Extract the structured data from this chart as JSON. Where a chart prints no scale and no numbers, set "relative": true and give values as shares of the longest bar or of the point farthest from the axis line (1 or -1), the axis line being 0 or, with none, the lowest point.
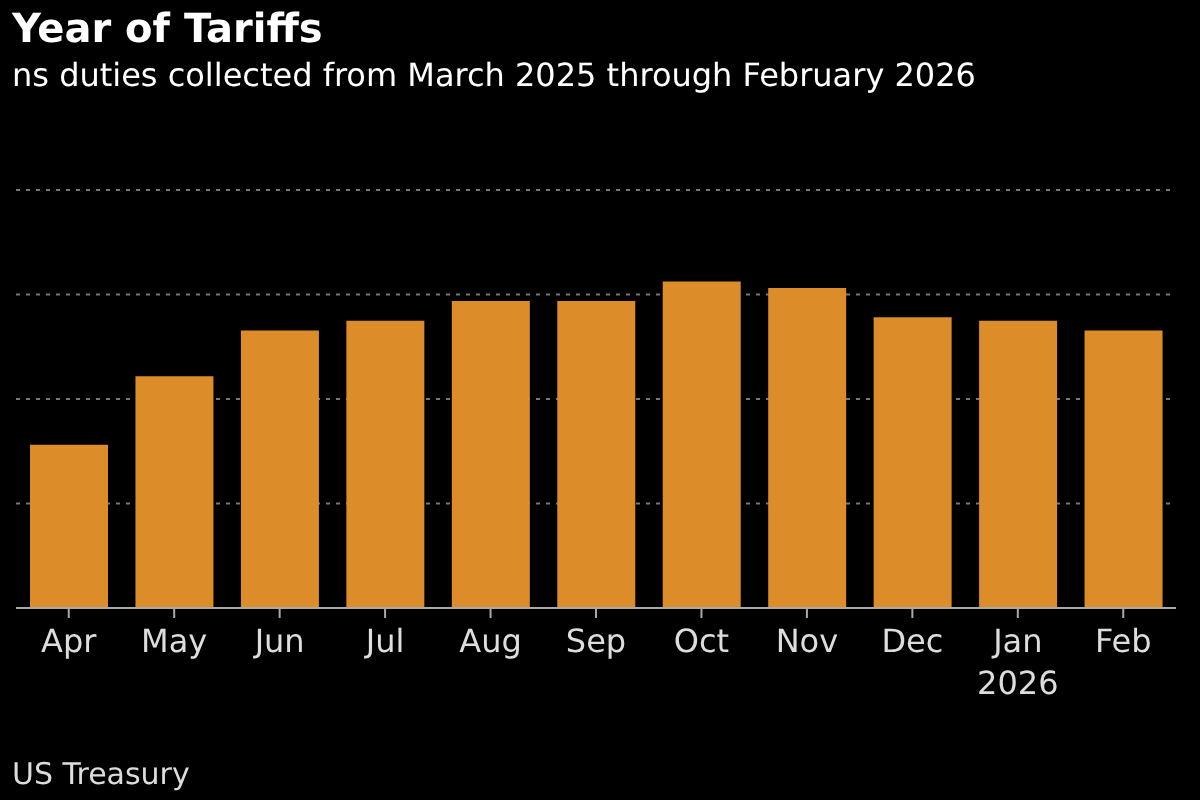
{
  "chart_data": {
    "type": "bar",
    "title": "Year of Tariffs",
    "subtitle": "ns duties collected from March 2025 through February 2026",
    "categories": [
      "Apr",
      "May",
      "Jun",
      "Jul",
      "Aug",
      "Sep",
      "Oct",
      "Nov",
      "Dec",
      "Jan\n2026",
      "Feb"
    ],
    "values": [
      0.5,
      0.71,
      0.85,
      0.88,
      0.94,
      0.94,
      1,
      0.98,
      0.89,
      0.88,
      0.85
    ],
    "color": "#dc8c28",
    "relative": true,
    "grid": "y",
    "annotations": [
      "US Treasury"
    ]
  }
}
